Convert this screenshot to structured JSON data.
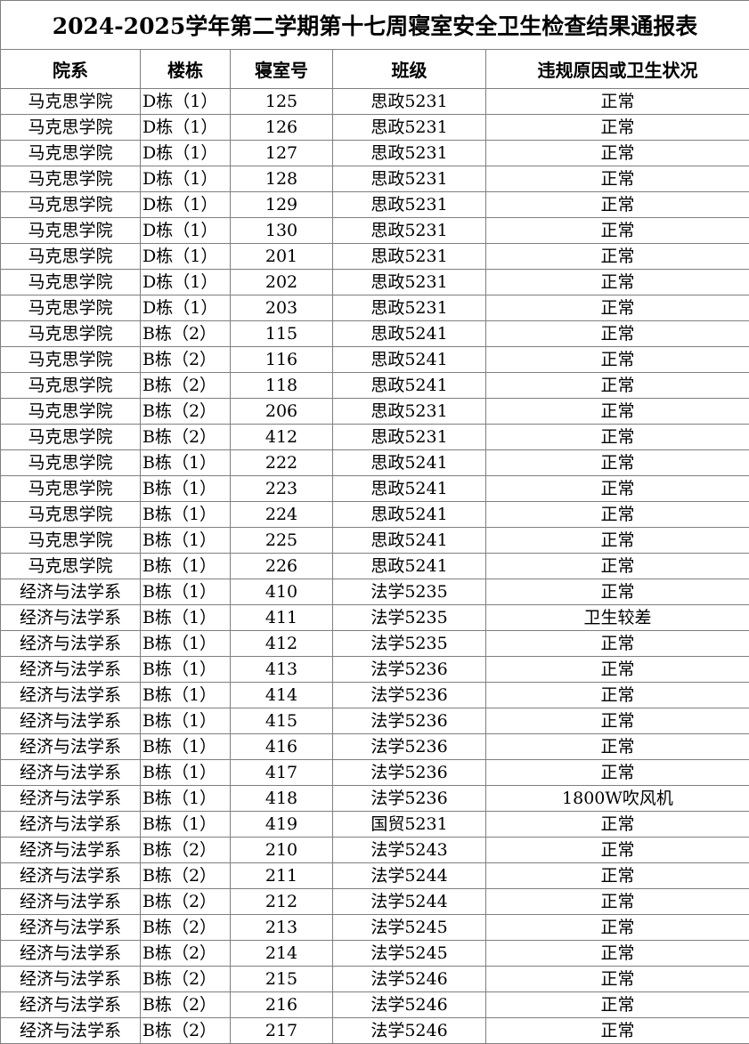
{
  "title": "2024-2025学年第二学期第十七周寝室安全卫生检查结果通报表",
  "table": {
    "header": [
      "院系",
      "楼栋",
      "寝室号",
      "班级",
      "违规原因或卫生状况"
    ],
    "rows": [
      [
        "马克思学院",
        "D栋（1）",
        "125",
        "思政5231",
        "正常"
      ],
      [
        "马克思学院",
        "D栋（1）",
        "126",
        "思政5231",
        "正常"
      ],
      [
        "马克思学院",
        "D栋（1）",
        "127",
        "思政5231",
        "正常"
      ],
      [
        "马克思学院",
        "D栋（1）",
        "128",
        "思政5231",
        "正常"
      ],
      [
        "马克思学院",
        "D栋（1）",
        "129",
        "思政5231",
        "正常"
      ],
      [
        "马克思学院",
        "D栋（1）",
        "130",
        "思政5231",
        "正常"
      ],
      [
        "马克思学院",
        "D栋（1）",
        "201",
        "思政5231",
        "正常"
      ],
      [
        "马克思学院",
        "D栋（1）",
        "202",
        "思政5231",
        "正常"
      ],
      [
        "马克思学院",
        "D栋（1）",
        "203",
        "思政5231",
        "正常"
      ],
      [
        "马克思学院",
        "B栋（2）",
        "115",
        "思政5241",
        "正常"
      ],
      [
        "马克思学院",
        "B栋（2）",
        "116",
        "思政5241",
        "正常"
      ],
      [
        "马克思学院",
        "B栋（2）",
        "118",
        "思政5241",
        "正常"
      ],
      [
        "马克思学院",
        "B栋（2）",
        "206",
        "思政5231",
        "正常"
      ],
      [
        "马克思学院",
        "B栋（2）",
        "412",
        "思政5231",
        "正常"
      ],
      [
        "马克思学院",
        "B栋（1）",
        "222",
        "思政5241",
        "正常"
      ],
      [
        "马克思学院",
        "B栋（1）",
        "223",
        "思政5241",
        "正常"
      ],
      [
        "马克思学院",
        "B栋（1）",
        "224",
        "思政5241",
        "正常"
      ],
      [
        "马克思学院",
        "B栋（1）",
        "225",
        "思政5241",
        "正常"
      ],
      [
        "马克思学院",
        "B栋（1）",
        "226",
        "思政5241",
        "正常"
      ],
      [
        "经济与法学系",
        "B栋（1）",
        "410",
        "法学5235",
        "正常"
      ],
      [
        "经济与法学系",
        "B栋（1）",
        "411",
        "法学5235",
        "卫生较差"
      ],
      [
        "经济与法学系",
        "B栋（1）",
        "412",
        "法学5235",
        "正常"
      ],
      [
        "经济与法学系",
        "B栋（1）",
        "413",
        "法学5236",
        "正常"
      ],
      [
        "经济与法学系",
        "B栋（1）",
        "414",
        "法学5236",
        "正常"
      ],
      [
        "经济与法学系",
        "B栋（1）",
        "415",
        "法学5236",
        "正常"
      ],
      [
        "经济与法学系",
        "B栋（1）",
        "416",
        "法学5236",
        "正常"
      ],
      [
        "经济与法学系",
        "B栋（1）",
        "417",
        "法学5236",
        "正常"
      ],
      [
        "经济与法学系",
        "B栋（1）",
        "418",
        "法学5236",
        "1800W吹风机"
      ],
      [
        "经济与法学系",
        "B栋（1）",
        "419",
        "国贸5231",
        "正常"
      ],
      [
        "经济与法学系",
        "B栋（2）",
        "210",
        "法学5243",
        "正常"
      ],
      [
        "经济与法学系",
        "B栋（2）",
        "211",
        "法学5244",
        "正常"
      ],
      [
        "经济与法学系",
        "B栋（2）",
        "212",
        "法学5244",
        "正常"
      ],
      [
        "经济与法学系",
        "B栋（2）",
        "213",
        "法学5245",
        "正常"
      ],
      [
        "经济与法学系",
        "B栋（2）",
        "214",
        "法学5245",
        "正常"
      ],
      [
        "经济与法学系",
        "B栋（2）",
        "215",
        "法学5246",
        "正常"
      ],
      [
        "经济与法学系",
        "B栋（2）",
        "216",
        "法学5246",
        "正常"
      ],
      [
        "经济与法学系",
        "B栋（2）",
        "217",
        "法学5246",
        "正常"
      ]
    ]
  }
}
